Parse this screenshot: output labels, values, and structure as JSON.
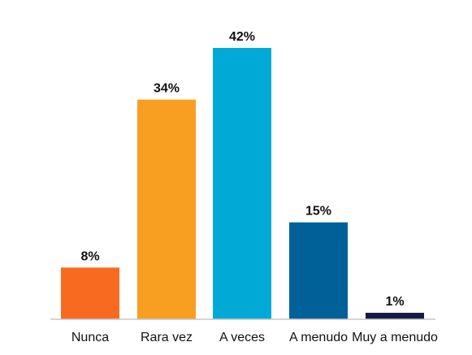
{
  "chart_data": {
    "type": "bar",
    "categories": [
      "Nunca",
      "Rara vez",
      "A veces",
      "A menudo",
      "Muy a menudo"
    ],
    "values": [
      8,
      34,
      42,
      15,
      1
    ],
    "value_labels": [
      "8%",
      "34%",
      "42%",
      "15%",
      "1%"
    ],
    "unit": "%",
    "colors": [
      "#f96a21",
      "#f89f21",
      "#00a9d6",
      "#006199",
      "#141a45"
    ],
    "axis_color": "#c7c7c7",
    "ylim": [
      0,
      42
    ],
    "grid": false,
    "legend": "none"
  }
}
